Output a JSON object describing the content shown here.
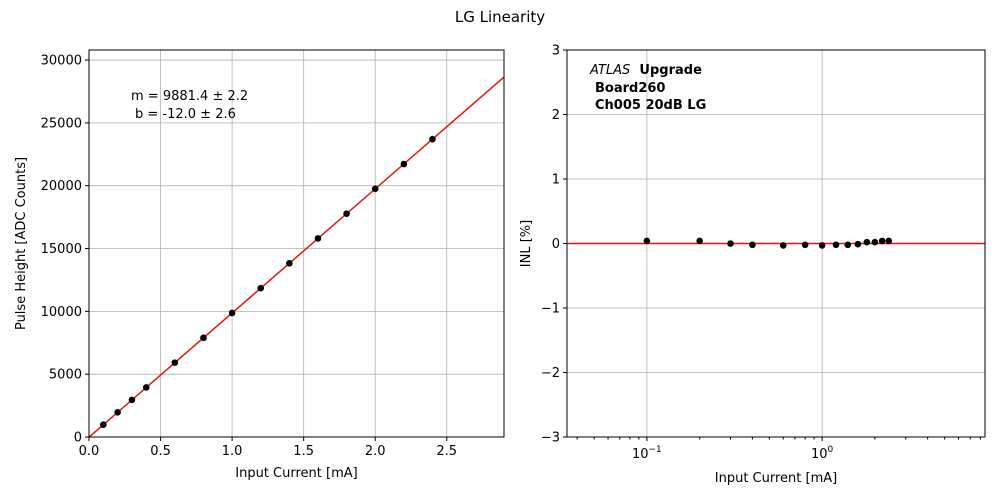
{
  "figure": {
    "suptitle": "LG Linearity"
  },
  "chart_data": [
    {
      "type": "scatter",
      "title": "",
      "xlabel": "Input Current [mA]",
      "ylabel": "Pulse Height [ADC Counts]",
      "xlim": [
        0,
        2.9
      ],
      "ylim": [
        0,
        30800
      ],
      "x_ticks": [
        0.0,
        0.5,
        1.0,
        1.5,
        2.0,
        2.5
      ],
      "x_tick_labels": [
        "0.0",
        "0.5",
        "1.0",
        "1.5",
        "2.0",
        "2.5"
      ],
      "y_ticks": [
        0,
        5000,
        10000,
        15000,
        20000,
        25000,
        30000
      ],
      "y_tick_labels": [
        "0",
        "5000",
        "10000",
        "15000",
        "20000",
        "25000",
        "30000"
      ],
      "grid": true,
      "fit": {
        "slope": 9881.4,
        "intercept": -12.0,
        "color": "#e8120c"
      },
      "annotation_lines": [
        "m = 9881.4 ± 2.2",
        "b = -12.0 ± 2.6"
      ],
      "points": {
        "x": [
          0.1,
          0.2,
          0.3,
          0.4,
          0.6,
          0.8,
          1.0,
          1.2,
          1.4,
          1.6,
          1.8,
          2.0,
          2.2,
          2.4
        ],
        "y": [
          980,
          1965,
          2955,
          3945,
          5920,
          7895,
          9870,
          11845,
          13820,
          15800,
          17770,
          19750,
          21725,
          23700
        ],
        "color": "#000000"
      }
    },
    {
      "type": "scatter",
      "title": "",
      "xlabel": "Input Current [mA]",
      "ylabel": "INL [%]",
      "xscale": "log",
      "xlim": [
        0.035,
        8.5
      ],
      "ylim": [
        -3,
        3
      ],
      "x_ticks": [
        0.1,
        1
      ],
      "x_tick_labels": [
        "10",
        "10"
      ],
      "x_tick_exponents": [
        "−1",
        "0"
      ],
      "y_ticks": [
        -3,
        -2,
        -1,
        0,
        1,
        2,
        3
      ],
      "y_tick_labels": [
        "−3",
        "−2",
        "−1",
        "0",
        "1",
        "2",
        "3"
      ],
      "grid": true,
      "reference_line": {
        "y": 0,
        "color": "#e8120c"
      },
      "annotation": {
        "atlas": "ATLAS",
        "upgrade": "Upgrade",
        "board": "Board260",
        "channel": "Ch005 20dB LG"
      },
      "points": {
        "x": [
          0.1,
          0.2,
          0.3,
          0.4,
          0.6,
          0.8,
          1.0,
          1.2,
          1.4,
          1.6,
          1.8,
          2.0,
          2.2,
          2.4
        ],
        "y": [
          0.04,
          0.04,
          0.0,
          -0.02,
          -0.03,
          -0.02,
          -0.03,
          -0.02,
          -0.02,
          -0.01,
          0.02,
          0.02,
          0.04,
          0.04
        ],
        "color": "#000000"
      }
    }
  ]
}
